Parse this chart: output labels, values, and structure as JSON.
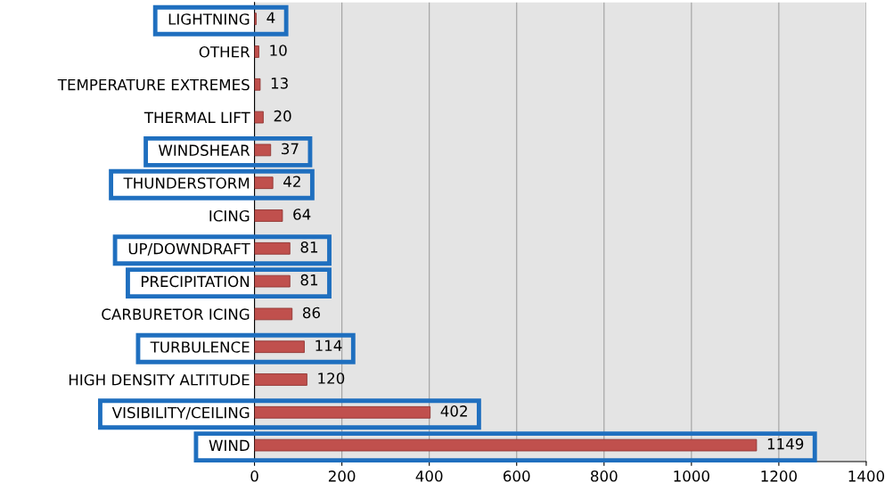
{
  "chart_data": {
    "type": "bar",
    "orientation": "horizontal",
    "categories": [
      "LIGHTNING",
      "OTHER",
      "TEMPERATURE EXTREMES",
      "THERMAL LIFT",
      "WINDSHEAR",
      "THUNDERSTORM",
      "ICING",
      "UP/DOWNDRAFT",
      "PRECIPITATION",
      "CARBURETOR ICING",
      "TURBULENCE",
      "HIGH DENSITY ALTITUDE",
      "VISIBILITY/CEILING",
      "WIND"
    ],
    "values": [
      4,
      10,
      13,
      20,
      37,
      42,
      64,
      81,
      81,
      86,
      114,
      120,
      402,
      1149
    ],
    "color": "#c0504d",
    "data_labels": true,
    "grid": "x",
    "xlim": [
      0,
      1400
    ],
    "xticks": [
      0,
      200,
      400,
      600,
      800,
      1000,
      1200,
      1400
    ]
  }
}
